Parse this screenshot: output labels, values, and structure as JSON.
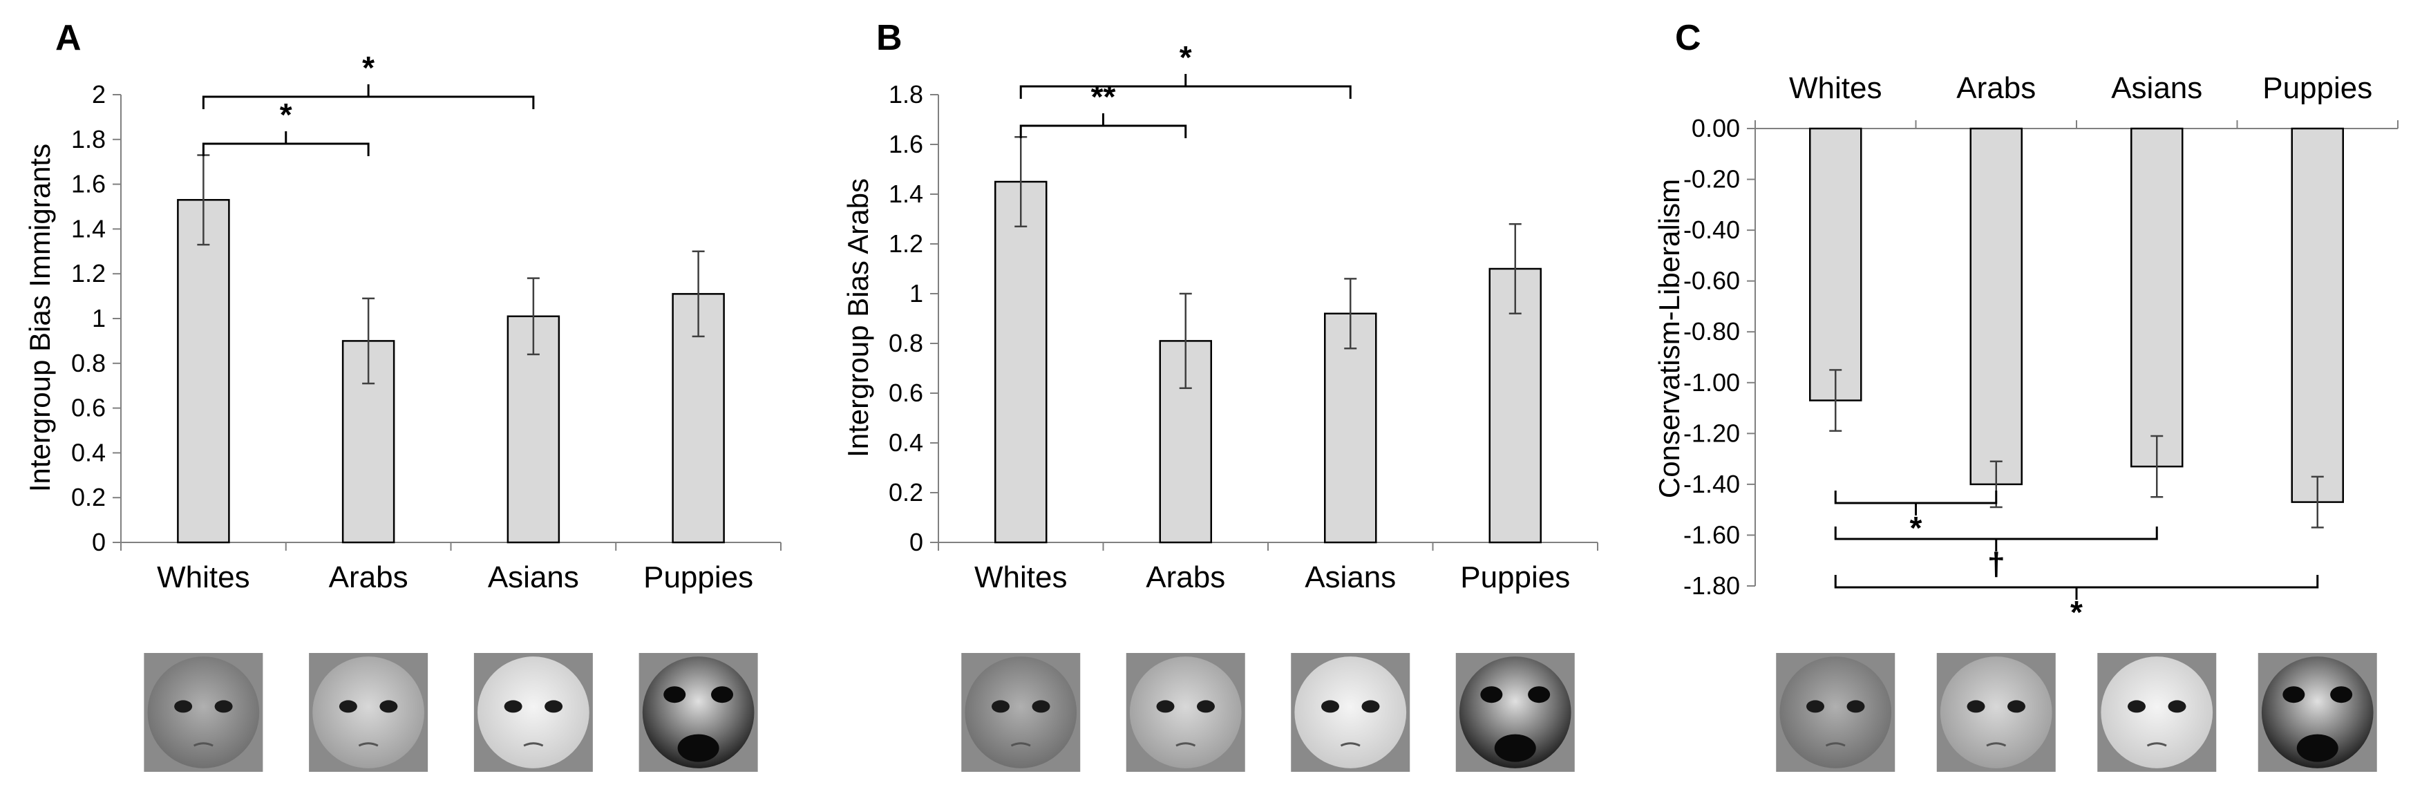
{
  "chart_data": [
    {
      "panel": "A",
      "type": "bar",
      "categories": [
        "Whites",
        "Arabs",
        "Asians",
        "Puppies"
      ],
      "values": [
        1.53,
        0.9,
        1.01,
        1.11
      ],
      "errors": [
        0.2,
        0.19,
        0.17,
        0.19
      ],
      "ylabel": "Intergroup Bias Immigrants",
      "ylim": [
        0,
        2
      ],
      "yticks": [
        0,
        0.2,
        0.4,
        0.6,
        0.8,
        1,
        1.2,
        1.4,
        1.6,
        1.8,
        2
      ],
      "ytick_labels": [
        "0",
        "0.2",
        "0.4",
        "0.6",
        "0.8",
        "1",
        "1.2",
        "1.4",
        "1.6",
        "1.8",
        "2"
      ],
      "significance": [
        {
          "from": "Whites",
          "to": "Arabs",
          "label": "*"
        },
        {
          "from": "Whites",
          "to": "Asians",
          "label": "*"
        }
      ],
      "images": [
        "white-baby-face",
        "arab-baby-face",
        "asian-baby-face",
        "puppy-face"
      ]
    },
    {
      "panel": "B",
      "type": "bar",
      "categories": [
        "Whites",
        "Arabs",
        "Asians",
        "Puppies"
      ],
      "values": [
        1.45,
        0.81,
        0.92,
        1.1
      ],
      "errors": [
        0.18,
        0.19,
        0.14,
        0.18
      ],
      "ylabel": "Intergroup Bias Arabs",
      "ylim": [
        0,
        1.8
      ],
      "yticks": [
        0,
        0.2,
        0.4,
        0.6,
        0.8,
        1,
        1.2,
        1.4,
        1.6,
        1.8
      ],
      "ytick_labels": [
        "0",
        "0.2",
        "0.4",
        "0.6",
        "0.8",
        "1",
        "1.2",
        "1.4",
        "1.6",
        "1.8"
      ],
      "significance": [
        {
          "from": "Whites",
          "to": "Arabs",
          "label": "**"
        },
        {
          "from": "Whites",
          "to": "Asians",
          "label": "*"
        }
      ],
      "images": [
        "white-baby-face",
        "arab-baby-face",
        "asian-baby-face",
        "puppy-face"
      ]
    },
    {
      "panel": "C",
      "type": "bar",
      "categories": [
        "Whites",
        "Arabs",
        "Asians",
        "Puppies"
      ],
      "values": [
        -1.07,
        -1.4,
        -1.33,
        -1.47
      ],
      "errors": [
        0.12,
        0.09,
        0.12,
        0.1
      ],
      "ylabel": "Conservatism-Liberalism",
      "ylim": [
        -1.8,
        0
      ],
      "yticks": [
        0,
        -0.2,
        -0.4,
        -0.6,
        -0.8,
        -1.0,
        -1.2,
        -1.4,
        -1.6,
        -1.8
      ],
      "ytick_labels": [
        "0.00",
        "-0.20",
        "-0.40",
        "-0.60",
        "-0.80",
        "-1.00",
        "-1.20",
        "-1.40",
        "-1.60",
        "-1.80"
      ],
      "significance": [
        {
          "from": "Whites",
          "to": "Arabs",
          "label": "*"
        },
        {
          "from": "Whites",
          "to": "Asians",
          "label": "†"
        },
        {
          "from": "Whites",
          "to": "Puppies",
          "label": "*"
        }
      ],
      "images": [
        "white-baby-face",
        "arab-baby-face",
        "asian-baby-face",
        "puppy-face"
      ]
    }
  ],
  "colors": {
    "bar_fill": "#d9d9d9",
    "bar_stroke": "#000000",
    "axis": "#808080",
    "error": "#404040"
  }
}
